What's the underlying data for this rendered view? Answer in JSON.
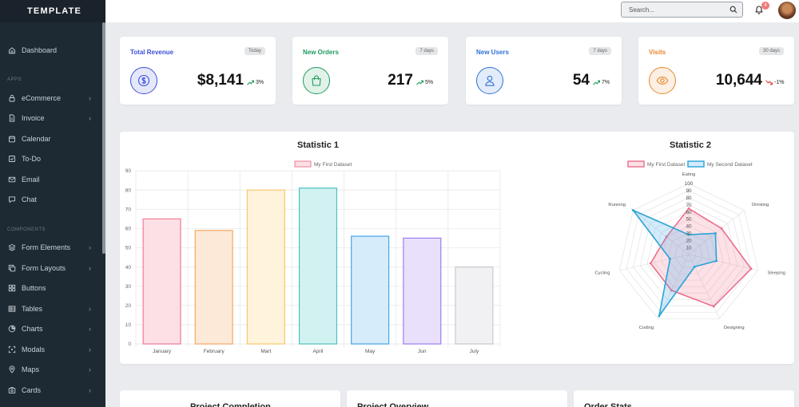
{
  "brand": "TEMPLATE",
  "sidebar": {
    "items": [
      {
        "label": "Dashboard",
        "icon": "home-icon",
        "chevron": false,
        "name": "sidebar-item-dashboard"
      },
      {
        "label": "eCommerce",
        "icon": "lock-icon",
        "chevron": true,
        "name": "sidebar-item-ecommerce"
      },
      {
        "label": "Invoice",
        "icon": "document-icon",
        "chevron": true,
        "name": "sidebar-item-invoice"
      },
      {
        "label": "Calendar",
        "icon": "calendar-icon",
        "chevron": false,
        "name": "sidebar-item-calendar"
      },
      {
        "label": "To-Do",
        "icon": "checkbox-icon",
        "chevron": false,
        "name": "sidebar-item-todo"
      },
      {
        "label": "Email",
        "icon": "mail-icon",
        "chevron": false,
        "name": "sidebar-item-email"
      },
      {
        "label": "Chat",
        "icon": "chat-icon",
        "chevron": false,
        "name": "sidebar-item-chat"
      },
      {
        "label": "Form Elements",
        "icon": "layers-icon",
        "chevron": true,
        "name": "sidebar-item-form-elements"
      },
      {
        "label": "Form Layouts",
        "icon": "copy-icon",
        "chevron": true,
        "name": "sidebar-item-form-layouts"
      },
      {
        "label": "Buttons",
        "icon": "grid-icon",
        "chevron": false,
        "name": "sidebar-item-buttons"
      },
      {
        "label": "Tables",
        "icon": "table-icon",
        "chevron": true,
        "name": "sidebar-item-tables"
      },
      {
        "label": "Charts",
        "icon": "pie-chart-icon",
        "chevron": true,
        "name": "sidebar-item-charts"
      },
      {
        "label": "Modals",
        "icon": "expand-icon",
        "chevron": true,
        "name": "sidebar-item-modals"
      },
      {
        "label": "Maps",
        "icon": "map-pin-icon",
        "chevron": true,
        "name": "sidebar-item-maps"
      },
      {
        "label": "Cards",
        "icon": "cards-icon",
        "chevron": true,
        "name": "sidebar-item-cards"
      }
    ],
    "section_apps": "APPS",
    "section_components": "COMPONENTS"
  },
  "topbar": {
    "search_placeholder": "Search...",
    "notification_count": "4"
  },
  "stats": [
    {
      "label": "Total Revenue",
      "period": "Today",
      "value": "$8,141",
      "trend": "3%",
      "direction": "up",
      "accent": "#3b4fd8",
      "icon": "dollar-icon"
    },
    {
      "label": "New Orders",
      "period": "7 days",
      "value": "217",
      "trend": "5%",
      "direction": "up",
      "accent": "#1e9c5c",
      "icon": "shopping-bag-icon"
    },
    {
      "label": "New Users",
      "period": "7 days",
      "value": "54",
      "trend": "7%",
      "direction": "up",
      "accent": "#2f72d6",
      "icon": "user-icon"
    },
    {
      "label": "Visits",
      "period": "30 days",
      "value": "10,644",
      "trend": "-1%",
      "direction": "down",
      "accent": "#e8872b",
      "icon": "eye-icon"
    }
  ],
  "colors": {
    "trend_up": "#1e9c5c",
    "trend_down": "#e03b3b"
  },
  "chart_data": [
    {
      "type": "bar",
      "title": "Statistic 1",
      "categories": [
        "January",
        "February",
        "Mart",
        "April",
        "May",
        "Jun",
        "July"
      ],
      "series": [
        {
          "name": "My First Dataset",
          "values": [
            65,
            59,
            80,
            81,
            56,
            55,
            40
          ]
        }
      ],
      "bar_fills": [
        "#fde0e6",
        "#fde9d8",
        "#fff3dc",
        "#d2f2f2",
        "#d6ecfa",
        "#e9e0fb",
        "#f1f1f3"
      ],
      "bar_strokes": [
        "#f07a93",
        "#f5a766",
        "#f8c968",
        "#4cc0c0",
        "#44a4e8",
        "#a07cf0",
        "#c8c9cc"
      ],
      "ylim": [
        0,
        90
      ],
      "yticks": [
        0,
        10,
        20,
        30,
        40,
        50,
        60,
        70,
        80,
        90
      ],
      "xlabel": "",
      "ylabel": "",
      "legend": "top-center"
    },
    {
      "type": "radar",
      "title": "Statistic 2",
      "categories": [
        "Eating",
        "Drinking",
        "Sleeping",
        "Designing",
        "Coding",
        "Cycling",
        "Running"
      ],
      "series": [
        {
          "name": "My First Dataset",
          "values": [
            65,
            59,
            90,
            81,
            56,
            55,
            40
          ],
          "stroke": "#ec6f8d",
          "fill": "rgba(240,122,147,0.22)"
        },
        {
          "name": "My Second Dataset",
          "values": [
            28,
            48,
            40,
            19,
            96,
            27,
            100
          ],
          "stroke": "#2aa3d6",
          "fill": "rgba(54,162,235,0.22)"
        }
      ],
      "rlim": [
        0,
        100
      ],
      "rticks": [
        10,
        20,
        30,
        40,
        50,
        60,
        70,
        80,
        90,
        100
      ],
      "legend": "top-center"
    }
  ],
  "bottom_cards": [
    {
      "title": "Project Completion"
    },
    {
      "title": "Project Overview"
    },
    {
      "title": "Order Stats"
    }
  ]
}
